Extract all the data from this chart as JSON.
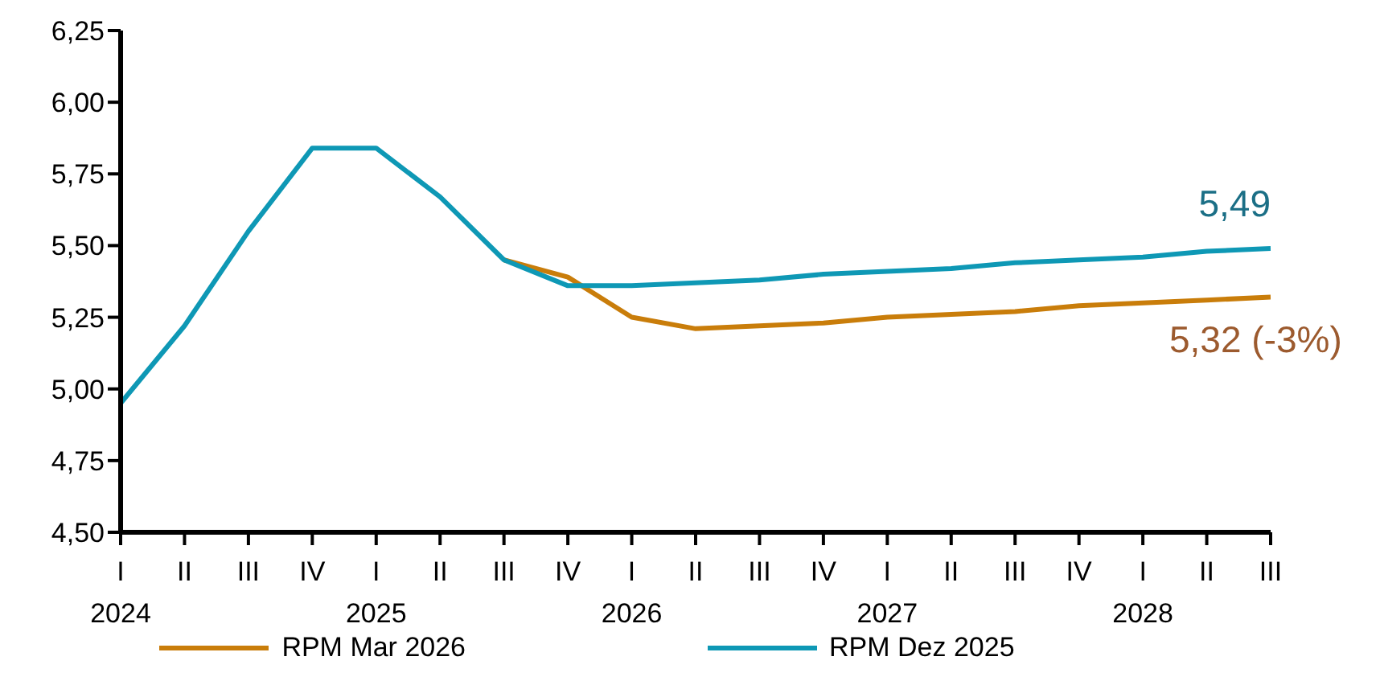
{
  "chart_data": {
    "type": "line",
    "categories": [
      "I\n2024",
      "II",
      "III",
      "IV",
      "I\n2025",
      "II",
      "III",
      "IV",
      "I\n2026",
      "II",
      "III",
      "IV",
      "I\n2027",
      "II",
      "III",
      "IV",
      "I\n2028",
      "II",
      "III"
    ],
    "series": [
      {
        "name": "RPM Mar 2026",
        "color": "#c97d0a",
        "values": [
          null,
          null,
          null,
          null,
          null,
          null,
          5.45,
          5.39,
          5.25,
          5.21,
          5.22,
          5.23,
          5.25,
          5.26,
          5.27,
          5.29,
          5.3,
          5.31,
          5.32
        ]
      },
      {
        "name": "RPM Dez 2025",
        "color": "#0e98b5",
        "values": [
          4.95,
          5.22,
          5.55,
          5.84,
          5.84,
          5.67,
          5.45,
          5.36,
          5.36,
          5.37,
          5.38,
          5.4,
          5.41,
          5.42,
          5.44,
          5.45,
          5.46,
          5.48,
          5.49
        ]
      }
    ],
    "ylim": [
      4.5,
      6.25
    ],
    "yticks": [
      {
        "value": 4.5,
        "label": "4,50"
      },
      {
        "value": 4.75,
        "label": "4,75"
      },
      {
        "value": 5,
        "label": "5,00"
      },
      {
        "value": 5.25,
        "label": "5,25"
      },
      {
        "value": 5.5,
        "label": "5,50"
      },
      {
        "value": 5.75,
        "label": "5,75"
      },
      {
        "value": 6,
        "label": "6,00"
      },
      {
        "value": 6.25,
        "label": "6,25"
      }
    ],
    "annotations": [
      "5,49",
      "5,32 (-3%)"
    ],
    "grid": false,
    "legend": "bottom",
    "marker": "none",
    "line_style": "solid"
  }
}
